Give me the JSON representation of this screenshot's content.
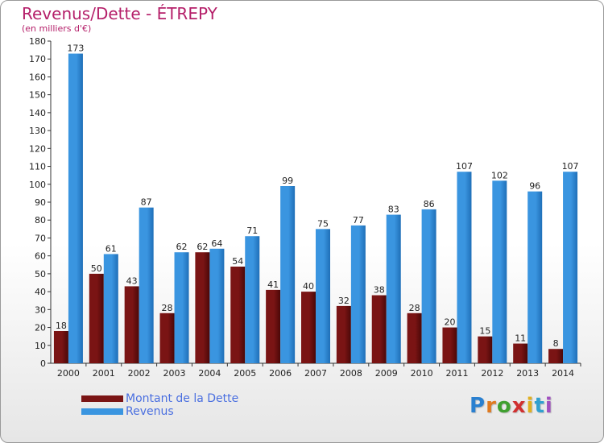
{
  "chart_data": {
    "type": "bar",
    "title": "Revenus/Dette - ÉTREPY",
    "subtitle": "(en milliers d'€)",
    "categories": [
      "2000",
      "2001",
      "2002",
      "2003",
      "2004",
      "2005",
      "2006",
      "2007",
      "2008",
      "2009",
      "2010",
      "2011",
      "2012",
      "2013",
      "2014"
    ],
    "series": [
      {
        "name": "Montant de la Dette",
        "color": "#7a1414",
        "values": [
          18,
          50,
          43,
          28,
          62,
          54,
          41,
          40,
          32,
          38,
          28,
          20,
          15,
          11,
          8
        ]
      },
      {
        "name": "Revenus",
        "color": "#3a95e0",
        "values": [
          173,
          61,
          87,
          62,
          64,
          71,
          99,
          75,
          77,
          83,
          86,
          107,
          102,
          96,
          107
        ]
      }
    ],
    "ylim": [
      0,
      180
    ],
    "ytick_step": 10,
    "grid": false,
    "legend_position": "bottom-left"
  },
  "logo": {
    "letters": [
      "P",
      "r",
      "o",
      "x",
      "i",
      "t",
      "i"
    ],
    "colors": [
      "#2a80d0",
      "#e07a20",
      "#40a030",
      "#d03030",
      "#e0b020",
      "#30a0d0",
      "#a050c0"
    ]
  }
}
